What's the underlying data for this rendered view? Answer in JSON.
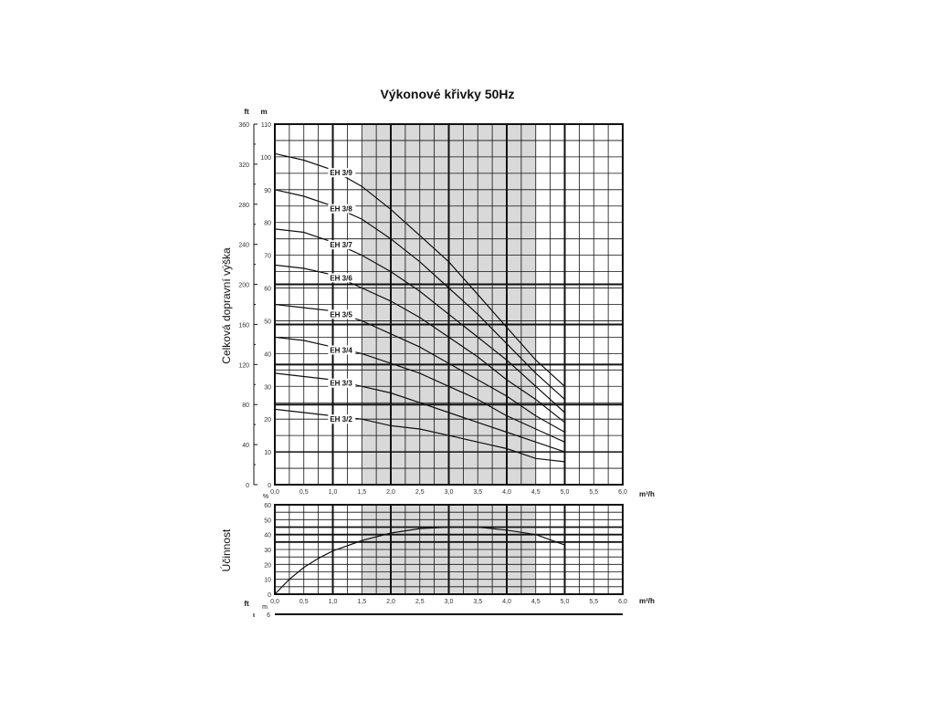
{
  "title": "Výkonové křivky 50Hz",
  "colors": {
    "shade": "#d9d9d9",
    "grid": "#111111",
    "curve": "#111111"
  },
  "chart_data": [
    {
      "type": "line",
      "title": "Výkonové křivky 50Hz",
      "xlabel": "m³/h",
      "ylabel": "Celková dopravní výška",
      "y_unit": "m",
      "y2_unit": "ft",
      "xlim": [
        0,
        6
      ],
      "ylim": [
        0,
        110
      ],
      "y2lim": [
        0,
        360
      ],
      "x_ticks": [
        "0,0",
        "0,5",
        "1,0",
        "1,5",
        "2,0",
        "2,5",
        "3,0",
        "3,5",
        "4,0",
        "4,5",
        "5,0",
        "5,5",
        "6,0"
      ],
      "y_ticks": [
        "0",
        "10",
        "20",
        "30",
        "40",
        "50",
        "60",
        "70",
        "80",
        "90",
        "100",
        "110"
      ],
      "y2_ticks": [
        "0",
        "40",
        "80",
        "120",
        "160",
        "200",
        "240",
        "280",
        "320",
        "360"
      ],
      "shaded_range_x": [
        1.5,
        4.5
      ],
      "grid": true,
      "series": [
        {
          "name": "EH 3/9",
          "x": [
            0,
            0.5,
            1,
            1.5,
            2,
            2.5,
            3,
            3.5,
            4,
            4.5,
            5
          ],
          "y": [
            101,
            99,
            96,
            91,
            84,
            76,
            68,
            58,
            48,
            38,
            30
          ]
        },
        {
          "name": "EH 3/8",
          "x": [
            0,
            0.5,
            1,
            1.5,
            2,
            2.5,
            3,
            3.5,
            4,
            4.5,
            5
          ],
          "y": [
            90,
            88,
            85,
            81,
            75,
            68,
            60,
            52,
            43,
            34,
            26
          ]
        },
        {
          "name": "EH 3/7",
          "x": [
            0,
            0.5,
            1,
            1.5,
            2,
            2.5,
            3,
            3.5,
            4,
            4.5,
            5
          ],
          "y": [
            78,
            77,
            74,
            70,
            65,
            59,
            52,
            45,
            38,
            30,
            22
          ]
        },
        {
          "name": "EH 3/6",
          "x": [
            0,
            0.5,
            1,
            1.5,
            2,
            2.5,
            3,
            3.5,
            4,
            4.5,
            5
          ],
          "y": [
            67,
            66,
            64,
            60,
            56,
            51,
            45,
            39,
            32,
            26,
            19
          ]
        },
        {
          "name": "EH 3/5",
          "x": [
            0,
            0.5,
            1,
            1.5,
            2,
            2.5,
            3,
            3.5,
            4,
            4.5,
            5
          ],
          "y": [
            55,
            54,
            53,
            50,
            46,
            42,
            37,
            32,
            27,
            21,
            16
          ]
        },
        {
          "name": "EH 3/4",
          "x": [
            0,
            0.5,
            1,
            1.5,
            2,
            2.5,
            3,
            3.5,
            4,
            4.5,
            5
          ],
          "y": [
            45,
            44,
            42,
            40,
            37,
            34,
            30,
            26,
            21,
            17,
            13
          ]
        },
        {
          "name": "EH 3/3",
          "x": [
            0,
            0.5,
            1,
            1.5,
            2,
            2.5,
            3,
            3.5,
            4,
            4.5,
            5
          ],
          "y": [
            34,
            33,
            32,
            30,
            28,
            25,
            22,
            19,
            16,
            13,
            10
          ]
        },
        {
          "name": "EH 3/2",
          "x": [
            0,
            0.5,
            1,
            1.5,
            2,
            2.5,
            3,
            3.5,
            4,
            4.5,
            5
          ],
          "y": [
            23,
            22,
            21,
            20,
            18,
            17,
            15,
            13,
            11,
            8,
            7
          ]
        }
      ]
    },
    {
      "type": "line",
      "xlabel": "m³/h",
      "ylabel": "Účinnost",
      "y_unit": "%",
      "xlim": [
        0,
        6
      ],
      "ylim": [
        0,
        60
      ],
      "x_ticks": [
        "0,0",
        "0,5",
        "1,0",
        "1,5",
        "2,0",
        "2,5",
        "3,0",
        "3,5",
        "4,0",
        "4,5",
        "5,0",
        "5,5",
        "6,0"
      ],
      "y_ticks": [
        "0",
        "10",
        "20",
        "30",
        "40",
        "50",
        "60"
      ],
      "shaded_range_x": [
        1.5,
        4.5
      ],
      "grid": true,
      "series": [
        {
          "x": [
            0,
            0.25,
            0.5,
            0.75,
            1,
            1.5,
            2,
            2.5,
            3,
            3.5,
            4,
            4.5,
            5
          ],
          "y": [
            0,
            10,
            18,
            24,
            29,
            36,
            41,
            44,
            45,
            45,
            43,
            40,
            33
          ]
        }
      ]
    },
    {
      "type": "line",
      "y_units": [
        "ft",
        "m"
      ],
      "y_ticks": [
        "6"
      ]
    }
  ]
}
